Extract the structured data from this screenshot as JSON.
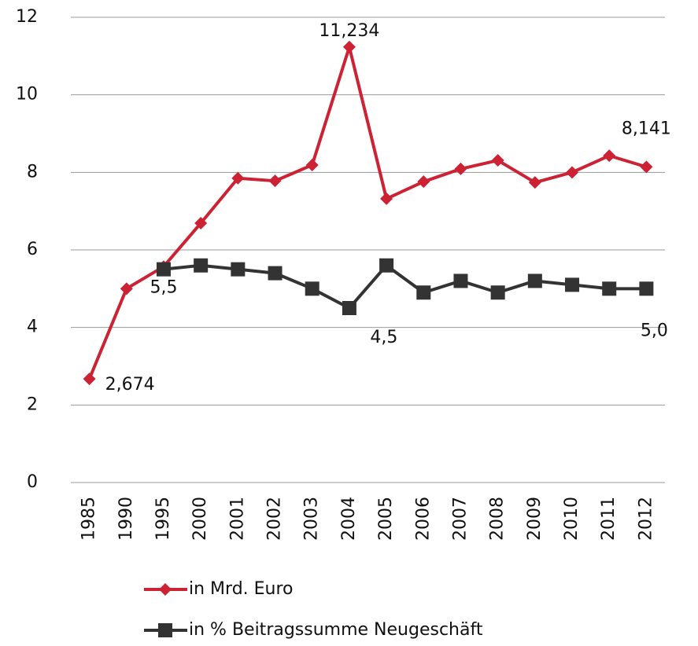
{
  "chart_data": {
    "type": "line",
    "categories": [
      "1985",
      "1990",
      "1995",
      "2000",
      "2001",
      "2002",
      "2003",
      "2004",
      "2005",
      "2006",
      "2007",
      "2008",
      "2009",
      "2010",
      "2011",
      "2012"
    ],
    "series": [
      {
        "name": "in Mrd. Euro",
        "color": "#cc2233",
        "values": [
          2.674,
          5.0,
          5.57,
          6.69,
          7.85,
          7.78,
          8.19,
          11.234,
          7.32,
          7.76,
          8.09,
          8.31,
          7.74,
          8.0,
          8.43,
          8.141
        ],
        "value_labels": [
          "2,674",
          null,
          null,
          null,
          null,
          null,
          null,
          "11,234",
          null,
          null,
          null,
          null,
          null,
          null,
          null,
          "8,141"
        ]
      },
      {
        "name": "in % Beitragssumme Neugeschäft",
        "color": "#333333",
        "values": [
          null,
          null,
          5.5,
          5.6,
          5.5,
          5.4,
          5.0,
          4.5,
          5.6,
          4.9,
          5.2,
          4.9,
          5.2,
          5.1,
          5.0,
          5.0
        ],
        "value_labels": [
          null,
          null,
          "5,5",
          null,
          null,
          null,
          null,
          "4,5",
          null,
          null,
          null,
          null,
          null,
          null,
          null,
          "5,0"
        ]
      }
    ],
    "ylim": [
      0,
      12
    ],
    "yticks": [
      0,
      2,
      4,
      6,
      8,
      10,
      12
    ],
    "grid": true,
    "legend": "bottom"
  }
}
